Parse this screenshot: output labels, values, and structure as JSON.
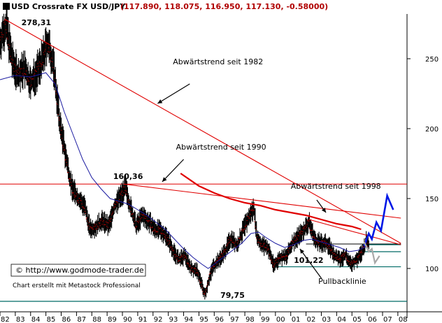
{
  "title": {
    "prefix": "USD Crossrate FX  USD/JPY",
    "values": "(117.890, 118.075, 116.950, 117.130, -0.58000)"
  },
  "credits": {
    "copyright": "© http://www.godmode-trader.de",
    "made_with": "Chart erstellt mit Metastock Professional"
  },
  "chart_data": {
    "type": "ohlc",
    "title": "USD Crossrate FX  USD/JPY",
    "ohlc_last": {
      "open": 117.89,
      "high": 118.075,
      "low": 116.95,
      "close": 117.13,
      "change": -0.58
    },
    "xlim": [
      1982.0,
      2008.6
    ],
    "ylim": [
      72,
      282
    ],
    "x_ticks": [
      "82",
      "83",
      "84",
      "85",
      "86",
      "87",
      "88",
      "89",
      "90",
      "91",
      "92",
      "93",
      "94",
      "95",
      "96",
      "97",
      "98",
      "99",
      "00",
      "01",
      "02",
      "03",
      "04",
      "05",
      "06",
      "07",
      "08"
    ],
    "y_ticks": [
      100,
      150,
      200,
      250
    ],
    "price_path": [
      [
        1982.0,
        262
      ],
      [
        1982.4,
        275
      ],
      [
        1982.8,
        248
      ],
      [
        1983.2,
        238
      ],
      [
        1983.6,
        243
      ],
      [
        1984.0,
        232
      ],
      [
        1984.4,
        240
      ],
      [
        1984.8,
        250
      ],
      [
        1985.1,
        262
      ],
      [
        1985.5,
        245
      ],
      [
        1985.9,
        205
      ],
      [
        1986.3,
        180
      ],
      [
        1986.7,
        158
      ],
      [
        1987.1,
        150
      ],
      [
        1987.5,
        145
      ],
      [
        1987.9,
        128
      ],
      [
        1988.3,
        130
      ],
      [
        1988.7,
        134
      ],
      [
        1989.1,
        130
      ],
      [
        1989.5,
        145
      ],
      [
        1989.9,
        152
      ],
      [
        1990.2,
        158
      ],
      [
        1990.5,
        145
      ],
      [
        1990.9,
        130
      ],
      [
        1991.3,
        138
      ],
      [
        1991.7,
        134
      ],
      [
        1992.1,
        128
      ],
      [
        1992.5,
        127
      ],
      [
        1992.9,
        123
      ],
      [
        1993.3,
        113
      ],
      [
        1993.7,
        106
      ],
      [
        1994.1,
        109
      ],
      [
        1994.5,
        100
      ],
      [
        1994.9,
        98
      ],
      [
        1995.2,
        88
      ],
      [
        1995.4,
        81
      ],
      [
        1995.6,
        90
      ],
      [
        1995.9,
        101
      ],
      [
        1996.3,
        106
      ],
      [
        1996.7,
        112
      ],
      [
        1997.1,
        122
      ],
      [
        1997.5,
        116
      ],
      [
        1997.9,
        128
      ],
      [
        1998.3,
        137
      ],
      [
        1998.6,
        144
      ],
      [
        1998.8,
        122
      ],
      [
        1999.1,
        117
      ],
      [
        1999.5,
        115
      ],
      [
        1999.9,
        102
      ],
      [
        2000.3,
        108
      ],
      [
        2000.7,
        108
      ],
      [
        2001.1,
        118
      ],
      [
        2001.5,
        123
      ],
      [
        2001.9,
        128
      ],
      [
        2002.2,
        133
      ],
      [
        2002.6,
        120
      ],
      [
        2003.0,
        118
      ],
      [
        2003.4,
        118
      ],
      [
        2003.8,
        110
      ],
      [
        2004.2,
        106
      ],
      [
        2004.6,
        110
      ],
      [
        2004.9,
        103
      ],
      [
        2005.3,
        106
      ],
      [
        2005.7,
        112
      ],
      [
        2005.95,
        120
      ],
      [
        2006.1,
        117
      ]
    ],
    "moving_average": [
      [
        1982.0,
        235
      ],
      [
        1983.0,
        238
      ],
      [
        1984.0,
        237
      ],
      [
        1985.0,
        240
      ],
      [
        1985.6,
        232
      ],
      [
        1986.2,
        212
      ],
      [
        1986.8,
        195
      ],
      [
        1987.4,
        178
      ],
      [
        1988.0,
        165
      ],
      [
        1988.6,
        157
      ],
      [
        1989.2,
        150
      ],
      [
        1989.8,
        148
      ],
      [
        1990.4,
        146
      ],
      [
        1991.0,
        142
      ],
      [
        1991.6,
        138
      ],
      [
        1992.2,
        133
      ],
      [
        1992.8,
        128
      ],
      [
        1993.4,
        121
      ],
      [
        1994.0,
        114
      ],
      [
        1994.6,
        108
      ],
      [
        1995.2,
        103
      ],
      [
        1995.6,
        100
      ],
      [
        1996.0,
        103
      ],
      [
        1996.6,
        108
      ],
      [
        1997.2,
        113
      ],
      [
        1997.8,
        118
      ],
      [
        1998.4,
        125
      ],
      [
        1998.9,
        126
      ],
      [
        1999.4,
        122
      ],
      [
        2000.0,
        118
      ],
      [
        2000.6,
        115
      ],
      [
        2001.2,
        117
      ],
      [
        2001.8,
        120
      ],
      [
        2002.4,
        121
      ],
      [
        2003.0,
        119
      ],
      [
        2003.6,
        117
      ],
      [
        2004.2,
        115
      ],
      [
        2004.8,
        112
      ],
      [
        2005.4,
        113
      ],
      [
        2006.0,
        116
      ]
    ],
    "trendlines": [
      {
        "label": "Abwärtstrend seit 1982",
        "color": "#e00000",
        "points": [
          [
            1982.3,
            278.31
          ],
          [
            2008.2,
            118
          ]
        ]
      },
      {
        "label": "Abwärtstrend seit 1990",
        "color": "#e00000",
        "points": [
          [
            1990.1,
            160.36
          ],
          [
            2008.2,
            136
          ]
        ]
      },
      {
        "label": "Abwärtstrend seit 1998",
        "color": "#e00000",
        "points": [
          [
            2002.2,
            135
          ],
          [
            2008.2,
            117
          ]
        ]
      }
    ],
    "curved_resistance": {
      "color": "#e00000",
      "points": [
        [
          1993.8,
          168
        ],
        [
          1995.0,
          159
        ],
        [
          1996.0,
          154
        ],
        [
          1997.0,
          150
        ],
        [
          1998.0,
          147
        ],
        [
          1999.0,
          145
        ],
        [
          2000.0,
          142
        ],
        [
          2001.0,
          140
        ],
        [
          2002.0,
          138
        ],
        [
          2003.0,
          135
        ],
        [
          2004.0,
          132
        ],
        [
          2005.0,
          130
        ],
        [
          2005.6,
          128
        ]
      ]
    },
    "horizontal_lines": [
      {
        "y": 160.36,
        "color": "#e00000",
        "x": [
          1982.0,
          2008.6
        ]
      },
      {
        "y": 117.5,
        "color": "#000000",
        "x": [
          2002.0,
          2008.2
        ]
      },
      {
        "y": 101.22,
        "color": "#006b66",
        "x": [
          1999.8,
          2008.2
        ]
      },
      {
        "y": 76.5,
        "color": "#006b66",
        "x": [
          1982.0,
          2008.6
        ]
      },
      {
        "y": 117.0,
        "color": "#006b66",
        "x": [
          2005.8,
          2008.2
        ]
      },
      {
        "y": 112.0,
        "color": "#006b66",
        "x": [
          2005.8,
          2008.2
        ]
      }
    ],
    "forecast_paths": [
      {
        "color": "#0018e6",
        "points": [
          [
            2005.8,
            116
          ],
          [
            2006.1,
            125
          ],
          [
            2006.3,
            121
          ],
          [
            2006.6,
            133
          ],
          [
            2006.9,
            127
          ],
          [
            2007.3,
            152
          ],
          [
            2007.7,
            142
          ]
        ]
      },
      {
        "color": "#a8a8a8",
        "points": [
          [
            2005.8,
            119
          ],
          [
            2006.1,
            112
          ],
          [
            2006.3,
            114
          ],
          [
            2006.5,
            104
          ],
          [
            2006.8,
            109
          ]
        ]
      }
    ],
    "annotations": [
      {
        "text": "278,31",
        "at": [
          1983.4,
          274
        ],
        "bold": true
      },
      {
        "text": "160,36",
        "at": [
          1989.4,
          164
        ],
        "bold": true
      },
      {
        "text": "101,22",
        "at": [
          2001.2,
          104
        ],
        "bold": true
      },
      {
        "text": "79,75",
        "at": [
          1996.4,
          79
        ],
        "bold": true
      },
      {
        "text": "Abwärtstrend seit 1982",
        "at": [
          1993.3,
          246
        ],
        "bold": false
      },
      {
        "text": "Abwärtstrend seit 1990",
        "at": [
          1993.5,
          185
        ],
        "bold": false
      },
      {
        "text": "Abwärtstrend seit 1998",
        "at": [
          2001.0,
          157
        ],
        "bold": false
      },
      {
        "text": "Pullbacklinie",
        "at": [
          2002.8,
          89
        ],
        "bold": false
      }
    ],
    "arrows": [
      {
        "from": [
          1994.4,
          232
        ],
        "to": [
          1992.3,
          218
        ]
      },
      {
        "from": [
          1994.0,
          178
        ],
        "to": [
          1992.6,
          162
        ]
      },
      {
        "from": [
          2002.7,
          149
        ],
        "to": [
          2003.3,
          140
        ]
      },
      {
        "from": [
          2003.0,
          93
        ],
        "to": [
          2001.6,
          114
        ]
      }
    ]
  }
}
